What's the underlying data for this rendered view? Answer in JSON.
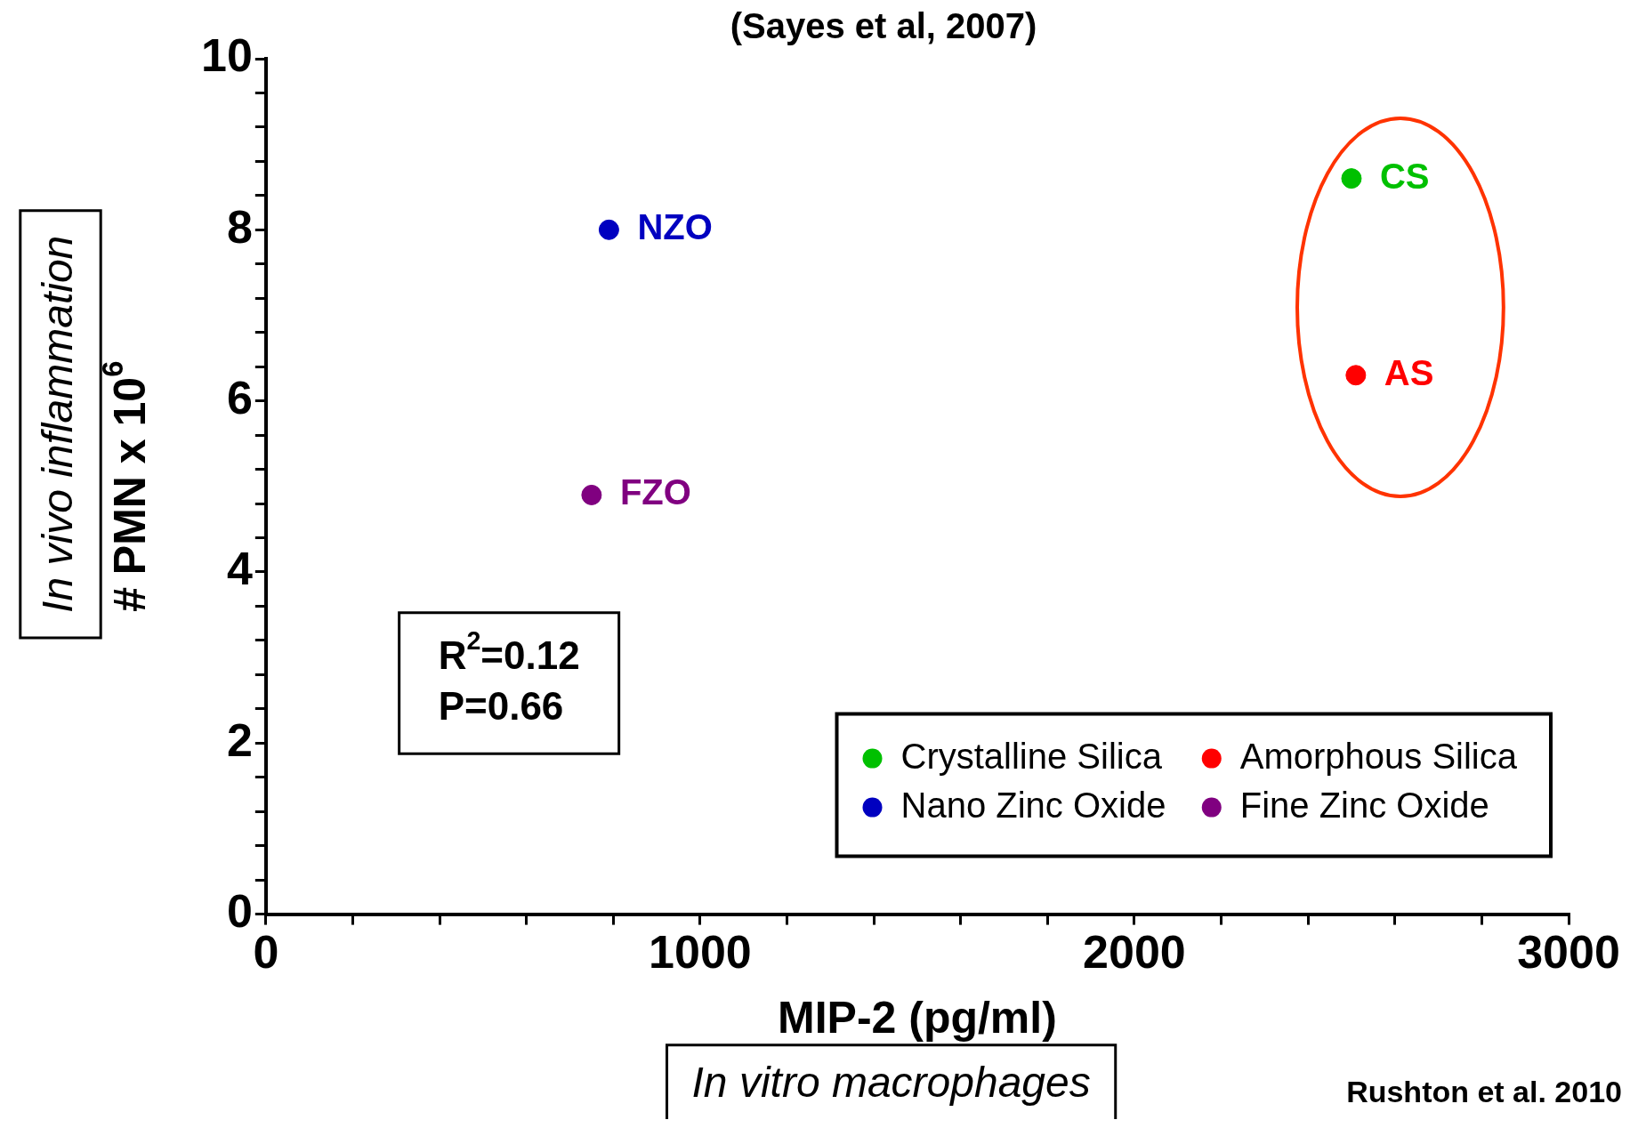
{
  "chart_data": {
    "type": "scatter",
    "title": "(Sayes et al, 2007)",
    "xlabel": "MIP-2 (pg/ml)",
    "ylabel": "# PMN x 10$^{6}$",
    "series": [
      {
        "name": "Crystalline Silica",
        "color": "#00c000",
        "x": [
          2500
        ],
        "values": [
          8.6
        ]
      },
      {
        "name": "Amorphous Silica",
        "color": "#ff0000",
        "x": [
          2510
        ],
        "values": [
          6.3
        ]
      },
      {
        "name": "Nano Zinc Oxide",
        "color": "#0000c0",
        "x": [
          790
        ],
        "values": [
          8.0
        ]
      },
      {
        "name": "Fine Zinc Oxide",
        "color": "#800080",
        "x": [
          750
        ],
        "values": [
          4.9
        ]
      }
    ],
    "xlim": [
      0,
      3000
    ],
    "xticks": [
      0,
      {
        "value": 200,
        "label": null
      },
      {
        "value": 400,
        "label": null
      },
      {
        "value": 600,
        "label": null
      },
      {
        "value": 800,
        "label": null
      },
      1000,
      {
        "value": 1200,
        "label": null
      },
      {
        "value": 1400,
        "label": null
      },
      {
        "value": 1600,
        "label": null
      },
      {
        "value": 1800,
        "label": null
      },
      2000,
      {
        "value": 2200,
        "label": null
      },
      {
        "value": 2400,
        "label": null
      },
      {
        "value": 2600,
        "label": null
      },
      {
        "value": 2800,
        "label": null
      },
      3000
    ],
    "ylim": [
      0,
      10
    ],
    "yticks": [
      0,
      {
        "value": 0.4,
        "label": null
      },
      {
        "value": 0.8,
        "label": null
      },
      {
        "value": 1.2,
        "label": null
      },
      {
        "value": 1.6,
        "label": null
      },
      2,
      {
        "value": 2.4,
        "label": null
      },
      {
        "value": 2.8,
        "label": null
      },
      {
        "value": 3.2,
        "label": null
      },
      {
        "value": 3.6,
        "label": null
      },
      4,
      {
        "value": 4.4,
        "label": null
      },
      {
        "value": 4.8,
        "label": null
      },
      {
        "value": 5.2,
        "label": null
      },
      {
        "value": 5.6,
        "label": null
      },
      6,
      {
        "value": 6.4,
        "label": null
      },
      {
        "value": 6.8,
        "label": null
      },
      {
        "value": 7.2,
        "label": null
      },
      {
        "value": 7.6,
        "label": null
      },
      8,
      {
        "value": 8.4,
        "label": null
      },
      {
        "value": 8.8,
        "label": null
      },
      {
        "value": 9.2,
        "label": null
      },
      {
        "value": 9.6,
        "label": null
      },
      10
    ],
    "grid": false,
    "legend": "bottom right",
    "marker": "circle",
    "annotations": [
      {
        "text": "CS",
        "x": 2500,
        "y": 8.6
      },
      {
        "text": "AS",
        "x": 2510,
        "y": 6.3
      },
      {
        "text": "NZO",
        "x": 790,
        "y": 8.0
      },
      {
        "text": "FZO",
        "x": 750,
        "y": 4.9
      },
      "In vivo inflammation",
      "In vitro macrophages",
      "R$^{2}$=0.12",
      "P=0.66",
      "Rushton et al. 2010"
    ]
  }
}
